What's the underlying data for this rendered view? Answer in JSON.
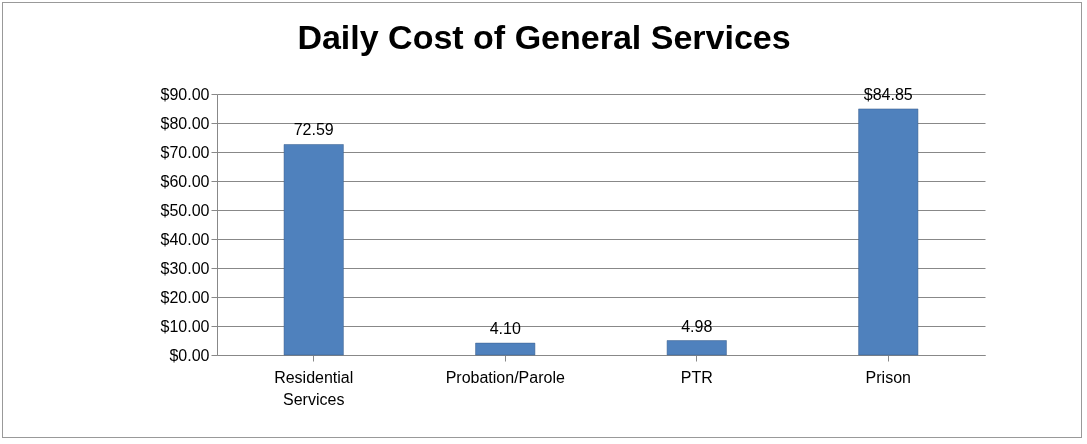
{
  "chart_data": {
    "type": "bar",
    "title": "Daily Cost of General Services",
    "categories": [
      "Residential Services",
      "Probation/Parole",
      "PTR",
      "Prison"
    ],
    "values": [
      72.59,
      4.1,
      4.98,
      84.85
    ],
    "value_labels": [
      "72.59",
      "4.10",
      "4.98",
      "$84.85"
    ],
    "color": "#4f81bd",
    "ylim": [
      0,
      90
    ],
    "yticks": [
      {
        "value": 0,
        "label": "$0.00"
      },
      {
        "value": 10,
        "label": "$10.00"
      },
      {
        "value": 20,
        "label": "$20.00"
      },
      {
        "value": 30,
        "label": "$30.00"
      },
      {
        "value": 40,
        "label": "$40.00"
      },
      {
        "value": 50,
        "label": "$50.00"
      },
      {
        "value": 60,
        "label": "$60.00"
      },
      {
        "value": 70,
        "label": "$70.00"
      },
      {
        "value": 80,
        "label": "$80.00"
      },
      {
        "value": 90,
        "label": "$90.00"
      }
    ],
    "grid": true
  }
}
